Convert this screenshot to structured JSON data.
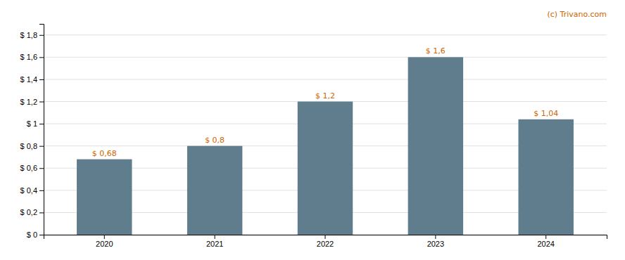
{
  "chart_data": {
    "type": "bar",
    "categories": [
      "2020",
      "2021",
      "2022",
      "2023",
      "2024"
    ],
    "values": [
      0.68,
      0.8,
      1.2,
      1.6,
      1.04
    ],
    "value_labels": [
      "$ 0,68",
      "$ 0,8",
      "$ 1,2",
      "$ 1,6",
      "$ 1,04"
    ],
    "data_labels": true,
    "color": "#5f7d8c",
    "ylim": [
      0,
      1.9
    ],
    "yticks": [
      {
        "value": 0.0,
        "label": "$ 0"
      },
      {
        "value": 0.2,
        "label": "$ 0,2"
      },
      {
        "value": 0.4,
        "label": "$ 0,4"
      },
      {
        "value": 0.6,
        "label": "$ 0,6"
      },
      {
        "value": 0.8,
        "label": "$ 0,8"
      },
      {
        "value": 1.0,
        "label": "$ 1"
      },
      {
        "value": 1.2,
        "label": "$ 1,2"
      },
      {
        "value": 1.4,
        "label": "$ 1,4"
      },
      {
        "value": 1.6,
        "label": "$ 1,6"
      },
      {
        "value": 1.8,
        "label": "$ 1,8"
      }
    ],
    "grid": true,
    "annotations": [
      "(c) Trivano.com"
    ]
  }
}
